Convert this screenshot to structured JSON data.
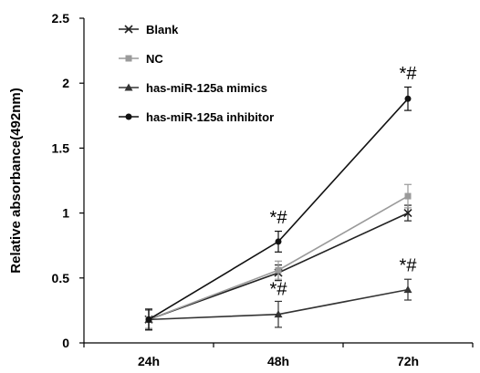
{
  "chart_data": {
    "type": "line",
    "ylabel": "Relative absorbance(492nm)",
    "xlabel": "",
    "title": "",
    "categories": [
      "24h",
      "48h",
      "72h"
    ],
    "ylim": [
      0,
      2.5
    ],
    "yticks": [
      0,
      0.5,
      1,
      1.5,
      2,
      2.5
    ],
    "ytick_labels": [
      "0",
      "0.5",
      "1",
      "1.5",
      "2",
      "2.5"
    ],
    "legend_position": "top-left",
    "series": [
      {
        "name": "Blank",
        "values": [
          0.18,
          0.54,
          1.0
        ],
        "errors": [
          0.07,
          0.06,
          0.06
        ],
        "color": "#222222",
        "marker": "x"
      },
      {
        "name": "NC",
        "values": [
          0.18,
          0.56,
          1.13
        ],
        "errors": [
          0.07,
          0.07,
          0.09
        ],
        "color": "#9a9a9a",
        "marker": "square"
      },
      {
        "name": "has-miR-125a mimics",
        "values": [
          0.18,
          0.22,
          0.41
        ],
        "errors": [
          0.08,
          0.1,
          0.08
        ],
        "color": "#333333",
        "marker": "triangle"
      },
      {
        "name": "has-miR-125a inhibitor",
        "values": [
          0.18,
          0.78,
          1.88
        ],
        "errors": [
          0.08,
          0.08,
          0.09
        ],
        "color": "#111111",
        "marker": "circle"
      }
    ],
    "annotations": [
      {
        "text": "*#",
        "category": "48h",
        "y": 0.92
      },
      {
        "text": "*#",
        "category": "48h",
        "y": 0.37
      },
      {
        "text": "*#",
        "category": "72h",
        "y": 2.03
      },
      {
        "text": "*#",
        "category": "72h",
        "y": 0.55
      }
    ]
  }
}
